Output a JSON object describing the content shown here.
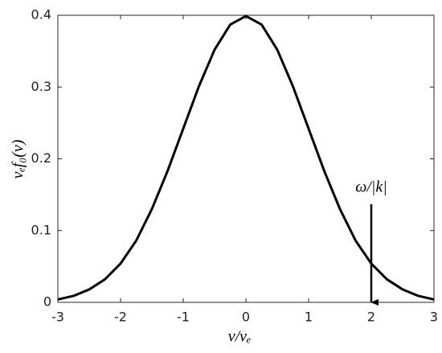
{
  "chart_data": {
    "type": "line",
    "x_label": "v/vₑ",
    "y_label": "vₑf₀(v)",
    "x": [
      -3,
      -2.75,
      -2.5,
      -2.25,
      -2,
      -1.75,
      -1.5,
      -1.25,
      -1,
      -0.75,
      -0.5,
      -0.25,
      0,
      0.25,
      0.5,
      0.75,
      1,
      1.25,
      1.5,
      1.75,
      2,
      2.25,
      2.5,
      2.75,
      3
    ],
    "series": [
      {
        "color": "#000000",
        "values": [
          0.004,
          0.009,
          0.018,
          0.032,
          0.054,
          0.086,
          0.13,
          0.183,
          0.242,
          0.301,
          0.352,
          0.387,
          0.399,
          0.387,
          0.352,
          0.301,
          0.242,
          0.183,
          0.13,
          0.086,
          0.054,
          0.032,
          0.018,
          0.009,
          0.004
        ]
      }
    ],
    "xlim": [
      -3,
      3
    ],
    "xticks": [
      -3,
      -2,
      -1,
      0,
      1,
      2,
      3
    ],
    "ylim": [
      0,
      0.4
    ],
    "yticks": [
      0,
      0.1,
      0.2,
      0.3,
      0.4
    ],
    "annotation": {
      "text": "ω/|k|",
      "x": 2
    }
  }
}
